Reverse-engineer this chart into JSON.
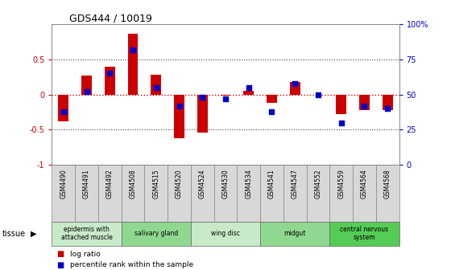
{
  "title": "GDS444 / 10019",
  "samples": [
    "GSM4490",
    "GSM4491",
    "GSM4492",
    "GSM4508",
    "GSM4515",
    "GSM4520",
    "GSM4524",
    "GSM4530",
    "GSM4534",
    "GSM4541",
    "GSM4547",
    "GSM4552",
    "GSM4559",
    "GSM4564",
    "GSM4568"
  ],
  "log_ratio": [
    -0.38,
    0.27,
    0.4,
    0.87,
    0.28,
    -0.62,
    -0.54,
    -0.02,
    0.05,
    -0.12,
    0.18,
    -0.01,
    -0.28,
    -0.22,
    -0.22
  ],
  "percentile": [
    38,
    52,
    65,
    82,
    55,
    42,
    48,
    47,
    55,
    38,
    58,
    50,
    30,
    42,
    40
  ],
  "ylim": [
    -1,
    1
  ],
  "yticks_left": [
    -1,
    -0.5,
    0,
    0.5
  ],
  "ytick_labels_left": [
    "-1",
    "-0.5",
    "0",
    "0.5"
  ],
  "yticks_right": [
    0,
    25,
    50,
    75,
    100
  ],
  "ytick_labels_right": [
    "0",
    "25",
    "50",
    "75",
    "100%"
  ],
  "hlines_dotted": [
    0.5,
    -0.5
  ],
  "tissue_groups": [
    {
      "label": "epidermis with\nattached muscle",
      "start": 0,
      "end": 3,
      "color": "#c8eac8"
    },
    {
      "label": "salivary gland",
      "start": 3,
      "end": 6,
      "color": "#90d890"
    },
    {
      "label": "wing disc",
      "start": 6,
      "end": 9,
      "color": "#c8eac8"
    },
    {
      "label": "midgut",
      "start": 9,
      "end": 12,
      "color": "#90d890"
    },
    {
      "label": "central nervous\nsystem",
      "start": 12,
      "end": 15,
      "color": "#55cc55"
    }
  ],
  "bar_color": "#cc0000",
  "dot_color": "#0000cc",
  "zero_line_color": "#cc0000",
  "dotted_line_color": "#444444",
  "bg_color": "#ffffff",
  "spine_color": "#888888",
  "tick_color_left": "#cc0000",
  "tick_color_right": "#0000cc",
  "sample_box_color": "#d8d8d8",
  "sample_box_edge": "#888888",
  "legend_log_ratio": "log ratio",
  "legend_percentile": "percentile rank within the sample",
  "tissue_label": "tissue"
}
